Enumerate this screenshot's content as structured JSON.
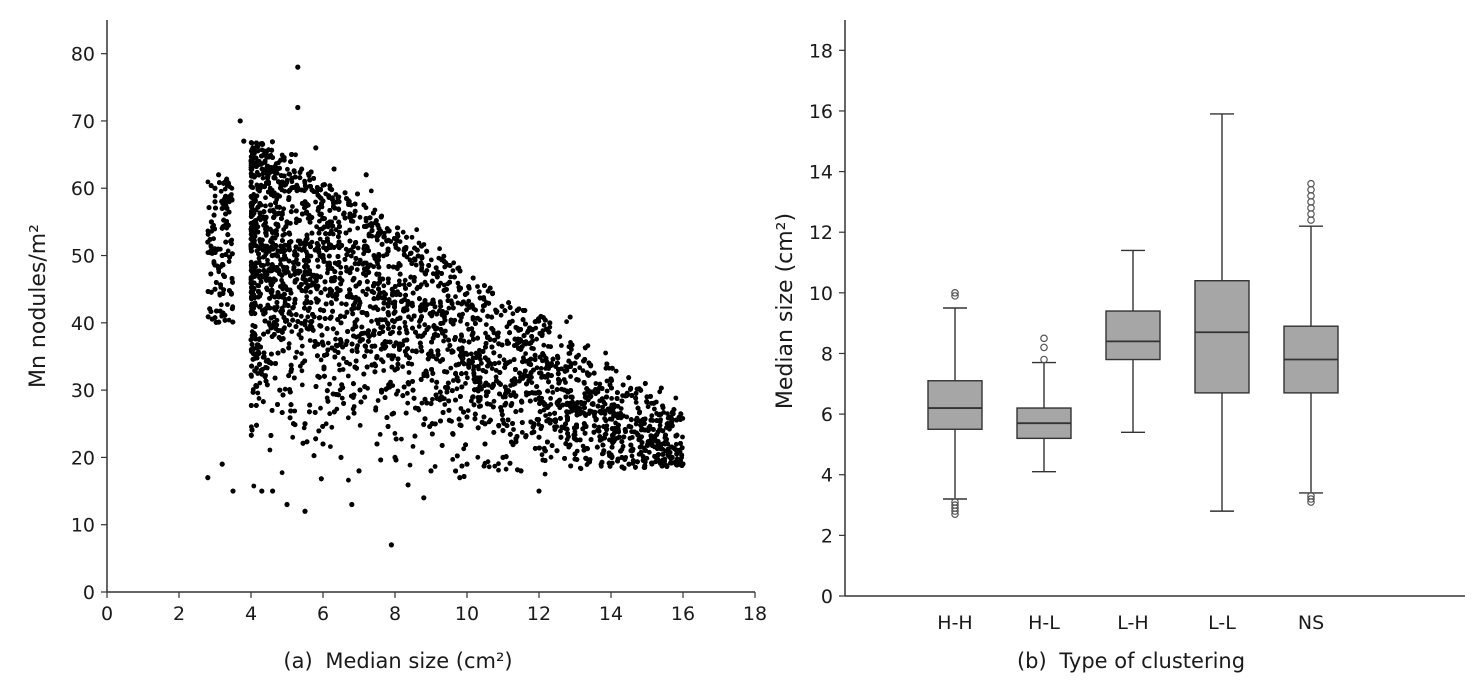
{
  "chart_data": [
    {
      "type": "scatter",
      "panel_label": "(a)",
      "title": "",
      "xlabel": "Median size (cm²)",
      "ylabel": "Mn nodules/m²",
      "xlim": [
        0,
        18
      ],
      "ylim": [
        0,
        85
      ],
      "xticks": [
        "0",
        "2",
        "4",
        "6",
        "8",
        "10",
        "12",
        "14",
        "16",
        "18"
      ],
      "yticks": [
        "0",
        "10",
        "20",
        "30",
        "40",
        "50",
        "60",
        "70",
        "80"
      ],
      "grid": false,
      "legend": "none",
      "marker_color": "#000000",
      "estimated_point_count": 9000,
      "points": [
        [
          2.8,
          52
        ],
        [
          2.9,
          55
        ],
        [
          3.0,
          58
        ],
        [
          3.0,
          60
        ],
        [
          3.1,
          62
        ],
        [
          3.2,
          57
        ],
        [
          3.0,
          45
        ],
        [
          3.1,
          48
        ],
        [
          3.2,
          50
        ],
        [
          3.3,
          52
        ],
        [
          2.8,
          17
        ],
        [
          3.2,
          19
        ],
        [
          3.5,
          15
        ],
        [
          3.7,
          70
        ],
        [
          3.8,
          67
        ],
        [
          4.3,
          15
        ],
        [
          4.6,
          15
        ],
        [
          5.0,
          13
        ],
        [
          5.3,
          78
        ],
        [
          5.3,
          72
        ],
        [
          5.5,
          12
        ],
        [
          5.8,
          66
        ],
        [
          6.8,
          13
        ],
        [
          7.2,
          62
        ],
        [
          7.9,
          7
        ],
        [
          8.8,
          14
        ],
        [
          9.8,
          17
        ],
        [
          10.5,
          22
        ],
        [
          11.5,
          18
        ],
        [
          12.3,
          40
        ],
        [
          12.0,
          15
        ],
        [
          13.0,
          34
        ],
        [
          13.5,
          28
        ],
        [
          13.8,
          21
        ],
        [
          14.2,
          24
        ],
        [
          14.5,
          19
        ],
        [
          15.0,
          29
        ],
        [
          15.5,
          22
        ],
        [
          15.7,
          20
        ],
        [
          15.9,
          19
        ],
        [
          4.2,
          64
        ],
        [
          4.5,
          40
        ],
        [
          4.8,
          30
        ],
        [
          5.0,
          55
        ],
        [
          5.5,
          58
        ],
        [
          6.0,
          50
        ],
        [
          6.2,
          45
        ],
        [
          6.5,
          40
        ],
        [
          6.8,
          42
        ],
        [
          7.0,
          38
        ],
        [
          7.5,
          35
        ],
        [
          8.0,
          33
        ],
        [
          8.5,
          30
        ],
        [
          9.0,
          28
        ],
        [
          9.5,
          27
        ],
        [
          10.0,
          26
        ],
        [
          10.5,
          25
        ],
        [
          11.0,
          24
        ],
        [
          11.5,
          27
        ],
        [
          12.0,
          23
        ],
        [
          5.5,
          25
        ],
        [
          6.0,
          22
        ],
        [
          6.5,
          20
        ],
        [
          7.0,
          18
        ],
        [
          7.5,
          22
        ],
        [
          8.0,
          20
        ],
        [
          9.0,
          18
        ],
        [
          10.0,
          19
        ],
        [
          11.0,
          20
        ],
        [
          12.5,
          21
        ]
      ]
    },
    {
      "type": "box",
      "panel_label": "(b)",
      "title": "",
      "xlabel": "Type of clustering",
      "ylabel": "Median size (cm²)",
      "ylim": [
        0,
        19
      ],
      "yticks": [
        "0",
        "2",
        "4",
        "6",
        "8",
        "10",
        "12",
        "14",
        "16",
        "18"
      ],
      "categories": [
        "H-H",
        "H-L",
        "L-H",
        "L-L",
        "NS"
      ],
      "box_color": "#a6a6a6",
      "grid": false,
      "legend": "none",
      "boxes": [
        {
          "category": "H-H",
          "whisker_low": 3.2,
          "q1": 5.5,
          "median": 6.2,
          "q3": 7.1,
          "whisker_high": 9.5,
          "outliers": [
            2.7,
            2.8,
            2.9,
            3.0,
            3.1,
            9.9,
            10.0
          ]
        },
        {
          "category": "H-L",
          "whisker_low": 4.1,
          "q1": 5.2,
          "median": 5.7,
          "q3": 6.2,
          "whisker_high": 7.7,
          "outliers": [
            7.8,
            8.2,
            8.5
          ]
        },
        {
          "category": "L-H",
          "whisker_low": 5.4,
          "q1": 7.8,
          "median": 8.4,
          "q3": 9.4,
          "whisker_high": 11.4,
          "outliers": []
        },
        {
          "category": "L-L",
          "whisker_low": 2.8,
          "q1": 6.7,
          "median": 8.7,
          "q3": 10.4,
          "whisker_high": 15.9,
          "outliers": []
        },
        {
          "category": "NS",
          "whisker_low": 3.4,
          "q1": 6.7,
          "median": 7.8,
          "q3": 8.9,
          "whisker_high": 12.2,
          "outliers": [
            3.1,
            3.2,
            3.3,
            12.4,
            12.6,
            12.8,
            13.0,
            13.2,
            13.4,
            13.6
          ]
        }
      ]
    }
  ]
}
